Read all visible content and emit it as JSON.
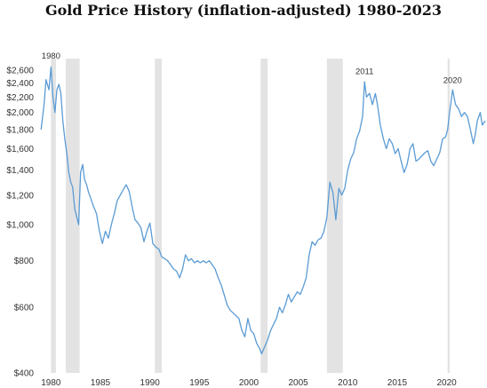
{
  "chart_data": {
    "type": "line",
    "title": "Gold Price History (inflation-adjusted) 1980-2023",
    "xlabel": "",
    "ylabel": "",
    "y_scale": "log",
    "ylim": [
      400,
      2700
    ],
    "xlim": [
      1978.8,
      2023.9
    ],
    "y_ticks": [
      400,
      600,
      800,
      1000,
      1200,
      1400,
      1600,
      1800,
      2000,
      2200,
      2400,
      2600
    ],
    "y_tick_labels": [
      "$400",
      "$600",
      "$800",
      "$1,000",
      "$1,200",
      "$1,400",
      "$1,600",
      "$1,800",
      "$2,000",
      "$2,200",
      "$2,400",
      "$2,600"
    ],
    "x_ticks": [
      1980,
      1985,
      1990,
      1995,
      2000,
      2005,
      2010,
      2015,
      2020
    ],
    "x_tick_labels": [
      "1980",
      "1985",
      "1990",
      "1995",
      "2000",
      "2005",
      "2010",
      "2015",
      "2020"
    ],
    "line_color": "#5b9bd5",
    "recession_color": "#e3e3e3",
    "recessions": [
      [
        1980.0,
        1980.5
      ],
      [
        1981.5,
        1982.9
      ],
      [
        1990.5,
        1991.2
      ],
      [
        2001.2,
        2001.9
      ],
      [
        2007.9,
        2009.5
      ],
      [
        2020.1,
        2020.3
      ]
    ],
    "annotations": [
      {
        "label": "1980",
        "x": 1980.0,
        "y": 2700
      },
      {
        "label": "2011",
        "x": 2011.7,
        "y": 2450
      },
      {
        "label": "2020",
        "x": 2020.6,
        "y": 2320
      }
    ],
    "series": [
      {
        "name": "",
        "points": [
          [
            1979.0,
            1800
          ],
          [
            1979.3,
            2100
          ],
          [
            1979.5,
            2450
          ],
          [
            1979.8,
            2300
          ],
          [
            1980.0,
            2650
          ],
          [
            1980.2,
            2200
          ],
          [
            1980.4,
            2000
          ],
          [
            1980.6,
            2300
          ],
          [
            1980.8,
            2380
          ],
          [
            1981.0,
            2250
          ],
          [
            1981.2,
            1900
          ],
          [
            1981.4,
            1700
          ],
          [
            1981.6,
            1550
          ],
          [
            1981.8,
            1380
          ],
          [
            1982.0,
            1300
          ],
          [
            1982.2,
            1260
          ],
          [
            1982.4,
            1100
          ],
          [
            1982.6,
            1050
          ],
          [
            1982.8,
            1000
          ],
          [
            1983.0,
            1380
          ],
          [
            1983.2,
            1450
          ],
          [
            1983.4,
            1320
          ],
          [
            1983.6,
            1280
          ],
          [
            1983.8,
            1220
          ],
          [
            1984.0,
            1180
          ],
          [
            1984.3,
            1120
          ],
          [
            1984.6,
            1070
          ],
          [
            1984.9,
            960
          ],
          [
            1985.2,
            890
          ],
          [
            1985.5,
            960
          ],
          [
            1985.8,
            920
          ],
          [
            1986.1,
            1000
          ],
          [
            1986.4,
            1070
          ],
          [
            1986.7,
            1160
          ],
          [
            1987.0,
            1200
          ],
          [
            1987.3,
            1240
          ],
          [
            1987.6,
            1280
          ],
          [
            1987.9,
            1230
          ],
          [
            1988.2,
            1120
          ],
          [
            1988.5,
            1030
          ],
          [
            1988.8,
            1010
          ],
          [
            1989.1,
            980
          ],
          [
            1989.4,
            900
          ],
          [
            1989.7,
            960
          ],
          [
            1990.0,
            1010
          ],
          [
            1990.3,
            890
          ],
          [
            1990.6,
            870
          ],
          [
            1990.9,
            860
          ],
          [
            1991.2,
            820
          ],
          [
            1991.5,
            810
          ],
          [
            1991.8,
            800
          ],
          [
            1992.1,
            780
          ],
          [
            1992.4,
            760
          ],
          [
            1992.7,
            750
          ],
          [
            1993.0,
            720
          ],
          [
            1993.3,
            760
          ],
          [
            1993.6,
            830
          ],
          [
            1993.9,
            800
          ],
          [
            1994.2,
            810
          ],
          [
            1994.5,
            790
          ],
          [
            1994.8,
            800
          ],
          [
            1995.1,
            790
          ],
          [
            1995.4,
            800
          ],
          [
            1995.7,
            790
          ],
          [
            1996.0,
            800
          ],
          [
            1996.3,
            780
          ],
          [
            1996.6,
            760
          ],
          [
            1996.9,
            720
          ],
          [
            1997.2,
            690
          ],
          [
            1997.5,
            650
          ],
          [
            1997.8,
            610
          ],
          [
            1998.1,
            590
          ],
          [
            1998.4,
            580
          ],
          [
            1998.7,
            570
          ],
          [
            1999.0,
            560
          ],
          [
            1999.3,
            520
          ],
          [
            1999.6,
            500
          ],
          [
            1999.9,
            560
          ],
          [
            2000.2,
            520
          ],
          [
            2000.5,
            510
          ],
          [
            2000.8,
            480
          ],
          [
            2001.1,
            465
          ],
          [
            2001.3,
            450
          ],
          [
            2001.6,
            470
          ],
          [
            2001.9,
            490
          ],
          [
            2002.2,
            520
          ],
          [
            2002.5,
            540
          ],
          [
            2002.8,
            560
          ],
          [
            2003.1,
            600
          ],
          [
            2003.4,
            580
          ],
          [
            2003.7,
            610
          ],
          [
            2004.0,
            650
          ],
          [
            2004.3,
            620
          ],
          [
            2004.6,
            640
          ],
          [
            2004.9,
            660
          ],
          [
            2005.2,
            650
          ],
          [
            2005.5,
            680
          ],
          [
            2005.8,
            720
          ],
          [
            2006.1,
            830
          ],
          [
            2006.4,
            900
          ],
          [
            2006.7,
            880
          ],
          [
            2007.0,
            910
          ],
          [
            2007.3,
            920
          ],
          [
            2007.6,
            960
          ],
          [
            2007.9,
            1050
          ],
          [
            2008.2,
            1300
          ],
          [
            2008.5,
            1220
          ],
          [
            2008.8,
            1030
          ],
          [
            2009.1,
            1250
          ],
          [
            2009.4,
            1200
          ],
          [
            2009.7,
            1250
          ],
          [
            2010.0,
            1400
          ],
          [
            2010.3,
            1500
          ],
          [
            2010.6,
            1560
          ],
          [
            2010.9,
            1700
          ],
          [
            2011.2,
            1780
          ],
          [
            2011.5,
            1950
          ],
          [
            2011.7,
            2420
          ],
          [
            2011.9,
            2200
          ],
          [
            2012.2,
            2250
          ],
          [
            2012.5,
            2100
          ],
          [
            2012.8,
            2250
          ],
          [
            2013.0,
            2100
          ],
          [
            2013.3,
            1850
          ],
          [
            2013.6,
            1700
          ],
          [
            2013.9,
            1600
          ],
          [
            2014.2,
            1700
          ],
          [
            2014.5,
            1650
          ],
          [
            2014.8,
            1550
          ],
          [
            2015.1,
            1600
          ],
          [
            2015.4,
            1480
          ],
          [
            2015.7,
            1380
          ],
          [
            2016.0,
            1450
          ],
          [
            2016.3,
            1600
          ],
          [
            2016.6,
            1650
          ],
          [
            2016.9,
            1480
          ],
          [
            2017.2,
            1500
          ],
          [
            2017.5,
            1530
          ],
          [
            2017.8,
            1560
          ],
          [
            2018.1,
            1580
          ],
          [
            2018.4,
            1480
          ],
          [
            2018.7,
            1440
          ],
          [
            2019.0,
            1500
          ],
          [
            2019.3,
            1560
          ],
          [
            2019.6,
            1700
          ],
          [
            2019.9,
            1720
          ],
          [
            2020.1,
            1800
          ],
          [
            2020.3,
            2000
          ],
          [
            2020.6,
            2300
          ],
          [
            2020.9,
            2100
          ],
          [
            2021.2,
            2050
          ],
          [
            2021.5,
            1950
          ],
          [
            2021.8,
            2000
          ],
          [
            2022.1,
            1950
          ],
          [
            2022.4,
            1800
          ],
          [
            2022.7,
            1650
          ],
          [
            2022.9,
            1750
          ],
          [
            2023.1,
            1900
          ],
          [
            2023.4,
            2000
          ],
          [
            2023.6,
            1850
          ],
          [
            2023.9,
            1900
          ]
        ]
      }
    ]
  }
}
